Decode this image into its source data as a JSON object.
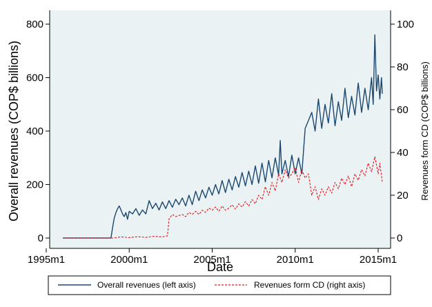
{
  "chart_data": {
    "type": "line",
    "xlabel": "Date",
    "ylabel_left": "Overall revenues (COP$ billions)",
    "ylabel_right": "Revenues form CD (COP$ billions)",
    "xlim": [
      1995.0,
      2015.0
    ],
    "x_ticks": [
      1995.0,
      2000.0,
      2005.0,
      2010.0,
      2015.0
    ],
    "x_tick_labels": [
      "1995m1",
      "2000m1",
      "2005m1",
      "2010m1",
      "2015m1"
    ],
    "ylim_left": [
      0,
      800
    ],
    "y_ticks_left": [
      0,
      200,
      400,
      600,
      800
    ],
    "ylim_right": [
      0,
      100
    ],
    "y_ticks_right": [
      0,
      20,
      40,
      60,
      80,
      100
    ],
    "legend_position": "bottom",
    "colors": {
      "plot_bg": "#eaf2f3",
      "overall": "#1a476f",
      "cd": "#e8131b"
    },
    "series": [
      {
        "name": "Overall revenues (left axis)",
        "axis": "left",
        "style": "solid",
        "x": [
          1996.0,
          1997.0,
          1998.0,
          1998.9,
          1999.0,
          1999.1,
          1999.2,
          1999.3,
          1999.4,
          1999.5,
          1999.6,
          1999.7,
          1999.8,
          1999.9,
          2000.0,
          2000.2,
          2000.4,
          2000.6,
          2000.8,
          2001.0,
          2001.2,
          2001.4,
          2001.6,
          2001.8,
          2002.0,
          2002.2,
          2002.4,
          2002.6,
          2002.8,
          2003.0,
          2003.2,
          2003.4,
          2003.6,
          2003.8,
          2004.0,
          2004.2,
          2004.4,
          2004.6,
          2004.8,
          2005.0,
          2005.2,
          2005.4,
          2005.6,
          2005.8,
          2006.0,
          2006.2,
          2006.4,
          2006.6,
          2006.8,
          2007.0,
          2007.2,
          2007.4,
          2007.6,
          2007.8,
          2008.0,
          2008.2,
          2008.4,
          2008.6,
          2008.8,
          2009.0,
          2009.1,
          2009.2,
          2009.4,
          2009.6,
          2009.8,
          2010.0,
          2010.2,
          2010.4,
          2010.6,
          2010.8,
          2011.0,
          2011.2,
          2011.4,
          2011.6,
          2011.8,
          2012.0,
          2012.2,
          2012.4,
          2012.6,
          2012.8,
          2013.0,
          2013.2,
          2013.4,
          2013.6,
          2013.8,
          2014.0,
          2014.2,
          2014.4,
          2014.6,
          2014.7,
          2014.8,
          2014.9,
          2015.0,
          2015.1,
          2015.2,
          2015.25
        ],
        "y": [
          0,
          0,
          0,
          0,
          40,
          75,
          95,
          110,
          120,
          105,
          90,
          80,
          95,
          70,
          100,
          90,
          110,
          85,
          105,
          90,
          140,
          110,
          130,
          105,
          135,
          110,
          140,
          115,
          145,
          125,
          150,
          120,
          160,
          125,
          175,
          140,
          180,
          150,
          190,
          160,
          200,
          165,
          215,
          170,
          220,
          180,
          230,
          190,
          245,
          195,
          250,
          200,
          270,
          205,
          280,
          210,
          290,
          225,
          300,
          235,
          365,
          240,
          290,
          230,
          310,
          240,
          300,
          240,
          410,
          440,
          470,
          400,
          520,
          410,
          500,
          430,
          540,
          420,
          510,
          440,
          560,
          450,
          530,
          460,
          580,
          470,
          560,
          480,
          600,
          500,
          760,
          550,
          610,
          520,
          600,
          540
        ]
      },
      {
        "name": "Revenues form CD (right axis)",
        "axis": "right",
        "style": "dashed",
        "x": [
          1996.0,
          1997.0,
          1998.0,
          1999.0,
          1999.5,
          2000.0,
          2000.5,
          2001.0,
          2001.5,
          2002.0,
          2002.3,
          2002.4,
          2002.6,
          2002.8,
          2003.0,
          2003.2,
          2003.4,
          2003.6,
          2003.8,
          2004.0,
          2004.2,
          2004.4,
          2004.6,
          2004.8,
          2005.0,
          2005.2,
          2005.4,
          2005.6,
          2005.8,
          2006.0,
          2006.2,
          2006.4,
          2006.6,
          2006.8,
          2007.0,
          2007.2,
          2007.4,
          2007.6,
          2007.8,
          2008.0,
          2008.2,
          2008.4,
          2008.6,
          2008.8,
          2009.0,
          2009.2,
          2009.4,
          2009.6,
          2009.8,
          2010.0,
          2010.2,
          2010.4,
          2010.6,
          2010.8,
          2011.0,
          2011.2,
          2011.4,
          2011.6,
          2011.8,
          2012.0,
          2012.2,
          2012.4,
          2012.6,
          2012.8,
          2013.0,
          2013.2,
          2013.4,
          2013.6,
          2013.8,
          2014.0,
          2014.2,
          2014.4,
          2014.6,
          2014.8,
          2015.0,
          2015.1,
          2015.25
        ],
        "y": [
          0,
          0,
          0,
          0,
          0.5,
          0.2,
          0.6,
          0.3,
          0.8,
          0.5,
          1.0,
          9,
          11,
          10,
          10.5,
          11,
          10,
          12,
          11,
          12.5,
          11,
          13,
          12,
          14,
          13,
          14.5,
          12.5,
          15,
          13,
          14,
          15.5,
          13.5,
          16,
          14.5,
          17,
          15,
          18,
          16,
          20,
          18,
          24,
          20,
          26,
          22,
          30,
          26,
          32,
          28,
          30,
          33,
          26,
          32,
          28,
          30,
          20,
          24,
          18,
          23,
          20,
          24,
          21,
          26,
          23,
          28,
          25,
          29,
          24,
          30,
          27,
          32,
          29,
          35,
          31,
          38,
          30,
          35,
          26
        ]
      }
    ]
  }
}
